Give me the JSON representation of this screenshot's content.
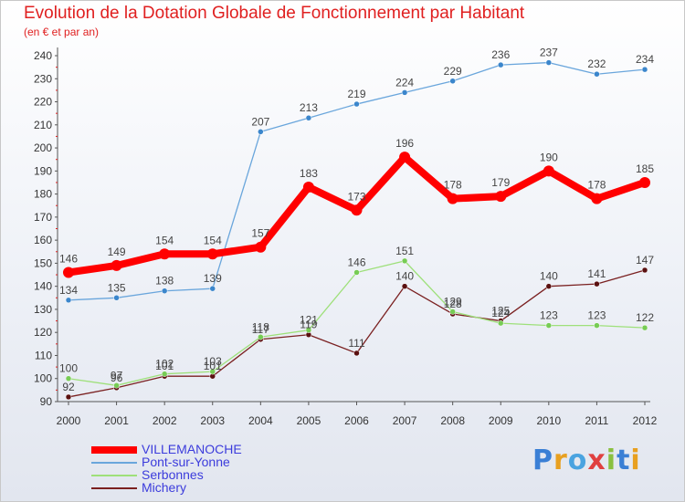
{
  "title": "Evolution de la Dotation Globale de Fonctionnement par Habitant",
  "subtitle": "(en € et par an)",
  "logo": {
    "text": "Proxiti",
    "letter_colors": [
      "#3a7fd5",
      "#e8a020",
      "#4aa3e0",
      "#e04040",
      "#8ac040",
      "#3a7fd5",
      "#e8a020"
    ]
  },
  "chart_data": {
    "type": "line",
    "title": "Evolution de la Dotation Globale de Fonctionnement par Habitant",
    "subtitle": "(en € et par an)",
    "x": [
      "2000",
      "2001",
      "2002",
      "2003",
      "2004",
      "2005",
      "2006",
      "2007",
      "2008",
      "2009",
      "2010",
      "2011",
      "2012"
    ],
    "ylim": [
      90,
      240
    ],
    "yticks": [
      90,
      100,
      110,
      120,
      130,
      140,
      150,
      160,
      170,
      180,
      190,
      200,
      210,
      220,
      230,
      240
    ],
    "grid": false,
    "legend_position": "bottom-left",
    "series": [
      {
        "name": "VILLEMANOCHE",
        "color": "#ff0000",
        "marker": "#cc0000",
        "values": [
          146,
          149,
          154,
          154,
          157,
          183,
          173,
          196,
          178,
          179,
          190,
          178,
          185
        ]
      },
      {
        "name": "Pont-sur-Yonne",
        "color": "#6aa6dc",
        "marker": "#3b86cc",
        "values": [
          134,
          135,
          138,
          139,
          207,
          213,
          219,
          224,
          229,
          236,
          237,
          232,
          234
        ]
      },
      {
        "name": "Serbonnes",
        "color": "#9ee07a",
        "marker": "#77cc55",
        "values": [
          100,
          97,
          102,
          103,
          118,
          121,
          146,
          151,
          129,
          124,
          123,
          123,
          122
        ]
      },
      {
        "name": "Michery",
        "color": "#7a2020",
        "marker": "#5a1010",
        "values": [
          92,
          96,
          101,
          101,
          117,
          119,
          111,
          140,
          128,
          125,
          140,
          141,
          147
        ]
      }
    ]
  }
}
